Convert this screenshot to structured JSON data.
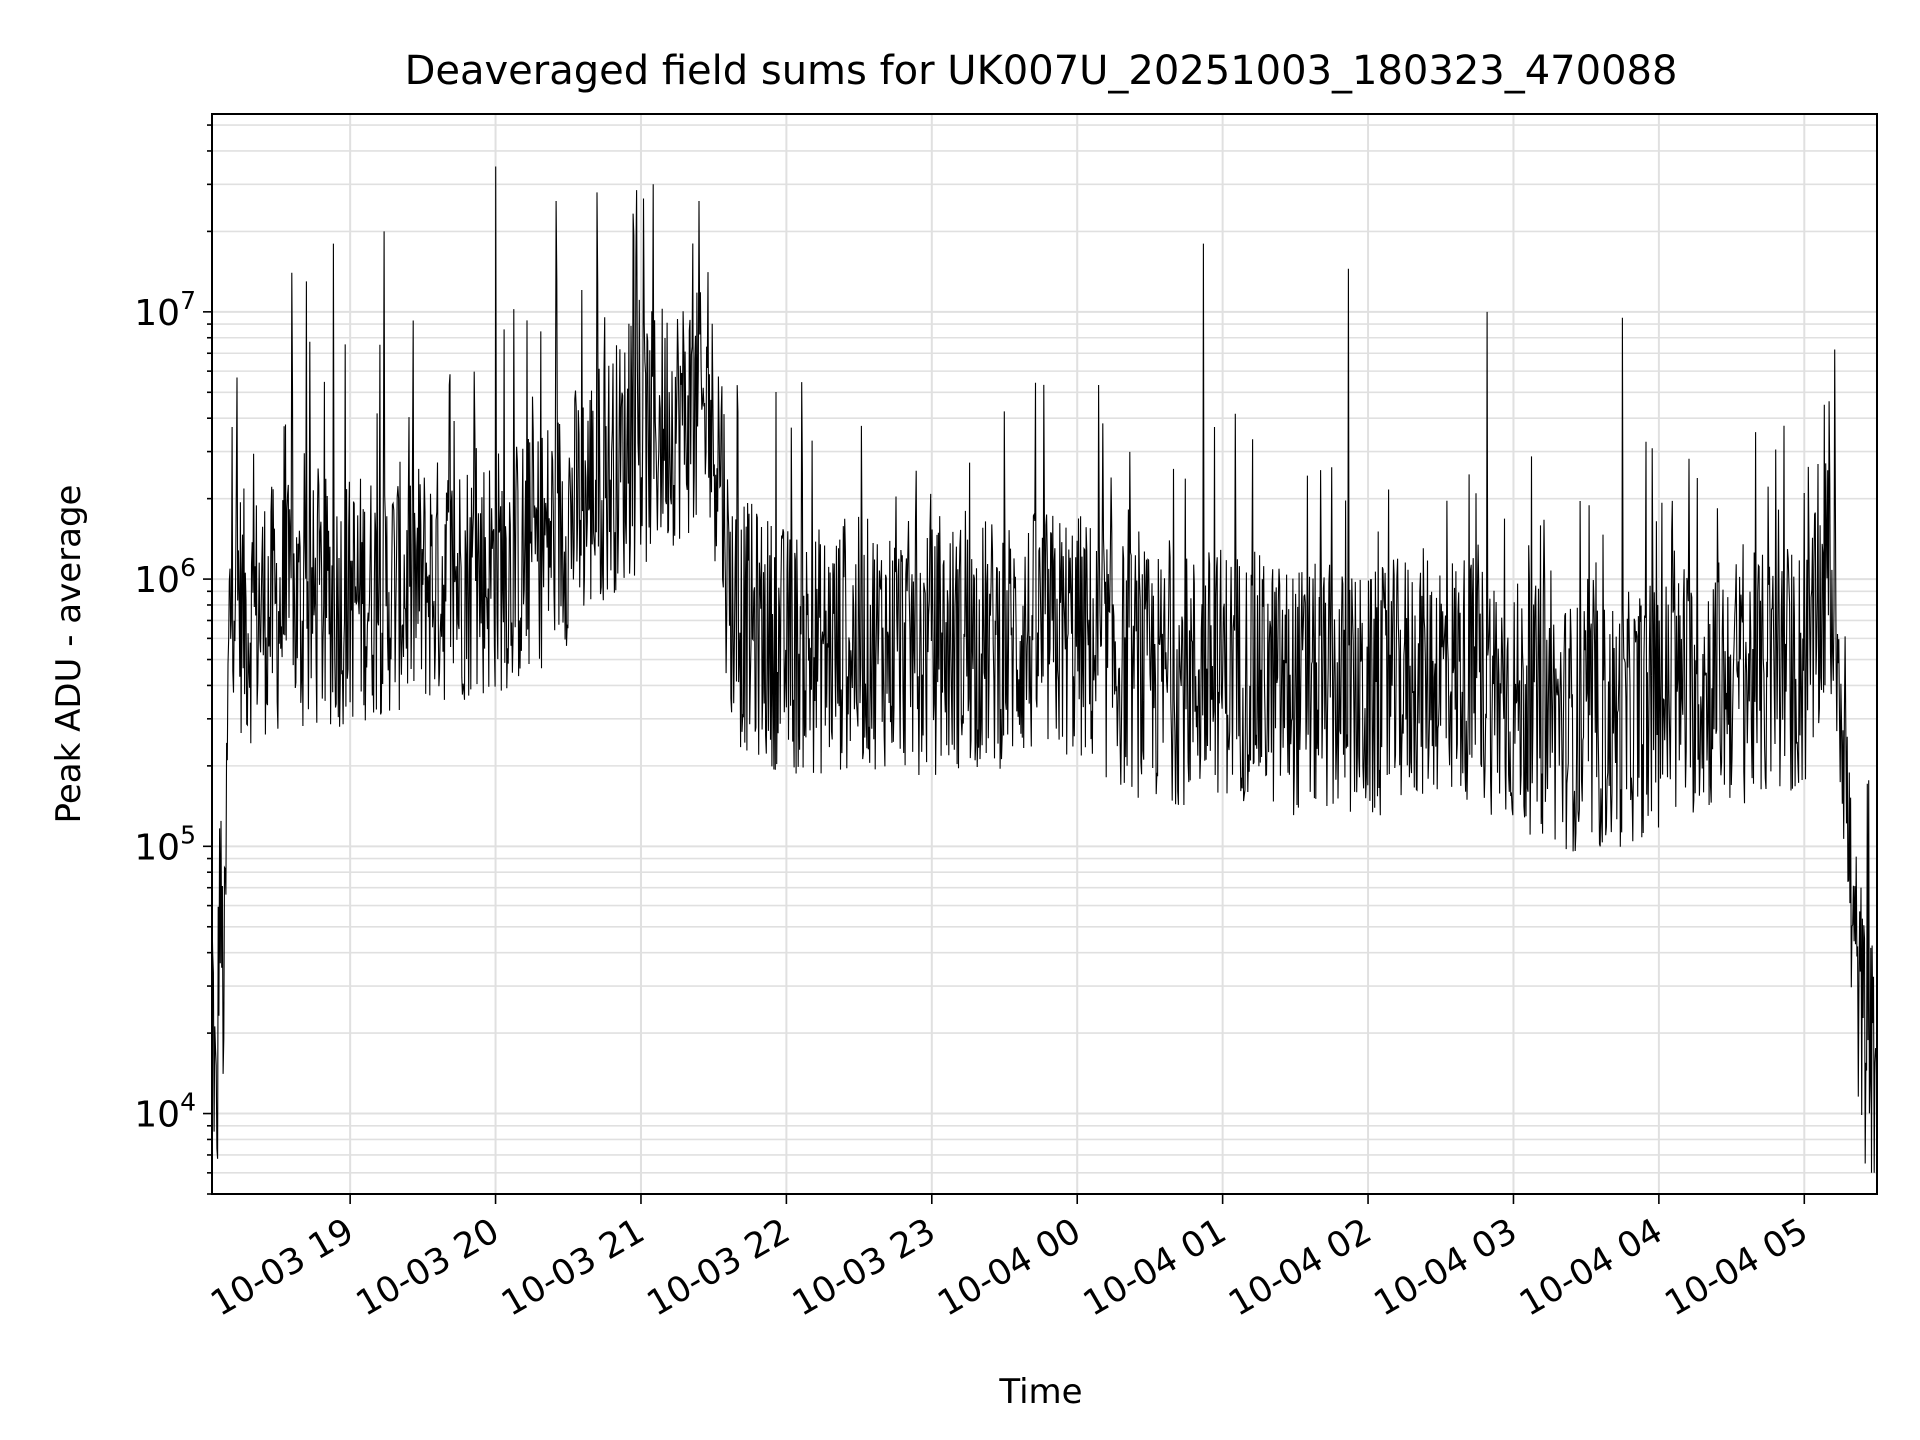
{
  "chart_data": {
    "type": "line",
    "title": "Deaveraged field sums for UK007U_20251003_180323_470088",
    "xlabel": "Time",
    "ylabel": "Peak ADU - average",
    "yscale": "log",
    "ylim": [
      5000,
      55000000
    ],
    "xlim": [
      "2025-10-03 18:03",
      "2025-10-04 05:30"
    ],
    "x_ticks": [
      {
        "label": "10-03 19",
        "time": "2025-10-03 19:00"
      },
      {
        "label": "10-03 20",
        "time": "2025-10-03 20:00"
      },
      {
        "label": "10-03 21",
        "time": "2025-10-03 21:00"
      },
      {
        "label": "10-03 22",
        "time": "2025-10-03 22:00"
      },
      {
        "label": "10-03 23",
        "time": "2025-10-03 23:00"
      },
      {
        "label": "10-04 00",
        "time": "2025-10-04 00:00"
      },
      {
        "label": "10-04 01",
        "time": "2025-10-04 01:00"
      },
      {
        "label": "10-04 02",
        "time": "2025-10-04 02:00"
      },
      {
        "label": "10-04 03",
        "time": "2025-10-04 03:00"
      },
      {
        "label": "10-04 04",
        "time": "2025-10-04 04:00"
      },
      {
        "label": "10-04 05",
        "time": "2025-10-04 05:00"
      }
    ],
    "y_ticks": [
      {
        "base": "10",
        "exp": "4",
        "value": 10000
      },
      {
        "base": "10",
        "exp": "5",
        "value": 100000
      },
      {
        "base": "10",
        "exp": "6",
        "value": 1000000
      },
      {
        "base": "10",
        "exp": "7",
        "value": 10000000
      }
    ],
    "grid": true,
    "line_color": "#000000",
    "grid_color": "#e0e0e0",
    "series": [
      {
        "x": [
          "2025-10-03 18:03",
          "2025-10-03 18:05",
          "2025-10-03 18:06",
          "2025-10-03 18:08",
          "2025-10-03 18:10",
          "2025-10-03 18:12",
          "2025-10-03 18:15",
          "2025-10-03 18:18",
          "2025-10-03 18:22",
          "2025-10-03 18:26",
          "2025-10-03 18:30",
          "2025-10-03 18:35",
          "2025-10-03 18:40",
          "2025-10-03 18:45",
          "2025-10-03 18:50",
          "2025-10-03 18:55",
          "2025-10-03 19:00",
          "2025-10-03 19:10",
          "2025-10-03 19:20",
          "2025-10-03 19:30",
          "2025-10-03 19:40",
          "2025-10-03 19:50",
          "2025-10-03 20:00",
          "2025-10-03 20:10",
          "2025-10-03 20:20",
          "2025-10-03 20:30",
          "2025-10-03 20:40",
          "2025-10-03 20:50",
          "2025-10-03 21:00",
          "2025-10-03 21:10",
          "2025-10-03 21:20",
          "2025-10-03 21:28",
          "2025-10-03 21:33",
          "2025-10-03 21:36",
          "2025-10-03 21:40",
          "2025-10-03 21:50",
          "2025-10-03 22:00",
          "2025-10-03 22:15",
          "2025-10-03 22:30",
          "2025-10-03 22:45",
          "2025-10-03 23:00",
          "2025-10-03 23:15",
          "2025-10-03 23:30",
          "2025-10-03 23:45",
          "2025-10-04 00:00",
          "2025-10-04 00:15",
          "2025-10-04 00:30",
          "2025-10-04 00:45",
          "2025-10-04 01:00",
          "2025-10-04 01:15",
          "2025-10-04 01:30",
          "2025-10-04 01:45",
          "2025-10-04 02:00",
          "2025-10-04 02:15",
          "2025-10-04 02:30",
          "2025-10-04 02:45",
          "2025-10-04 03:00",
          "2025-10-04 03:15",
          "2025-10-04 03:30",
          "2025-10-04 03:45",
          "2025-10-04 04:00",
          "2025-10-04 04:15",
          "2025-10-04 04:30",
          "2025-10-04 04:45",
          "2025-10-04 05:00",
          "2025-10-04 05:05",
          "2025-10-04 05:10",
          "2025-10-04 05:15",
          "2025-10-04 05:20",
          "2025-10-04 05:25",
          "2025-10-04 05:28",
          "2025-10-04 05:30"
        ],
        "values": [
          50000,
          8000,
          100000,
          30000,
          800000,
          1500000,
          1000000,
          900000,
          1000000,
          1000000,
          1000000,
          1000000,
          950000,
          1000000,
          1050000,
          1050000,
          1100000,
          1150000,
          1200000,
          1250000,
          1300000,
          1350000,
          1400000,
          1500000,
          1800000,
          2200000,
          2800000,
          3500000,
          4000000,
          5000000,
          5500000,
          5000000,
          4000000,
          1200000,
          900000,
          800000,
          700000,
          700000,
          750000,
          750000,
          700000,
          750000,
          750000,
          800000,
          800000,
          650000,
          550000,
          550000,
          600000,
          550000,
          500000,
          500000,
          450000,
          550000,
          600000,
          550000,
          450000,
          400000,
          350000,
          380000,
          450000,
          500000,
          550000,
          550000,
          600000,
          800000,
          1500000,
          600000,
          60000,
          25000,
          20000,
          20000
        ],
        "spikes": [
          {
            "time": "2025-10-03 18:36",
            "value": 14000000
          },
          {
            "time": "2025-10-03 18:42",
            "value": 13000000
          },
          {
            "time": "2025-10-03 18:53",
            "value": 18000000
          },
          {
            "time": "2025-10-03 19:14",
            "value": 20000000
          },
          {
            "time": "2025-10-03 20:00",
            "value": 35000000
          },
          {
            "time": "2025-10-03 20:25",
            "value": 26000000
          },
          {
            "time": "2025-10-03 20:42",
            "value": 28000000
          },
          {
            "time": "2025-10-03 21:05",
            "value": 30000000
          },
          {
            "time": "2025-10-03 21:24",
            "value": 26000000
          },
          {
            "time": "2025-10-03 23:14",
            "value": 1800000
          },
          {
            "time": "2025-10-04 00:14",
            "value": 2400000
          },
          {
            "time": "2025-10-04 00:52",
            "value": 18000000
          },
          {
            "time": "2025-10-04 01:52",
            "value": 14500000
          },
          {
            "time": "2025-10-04 02:49",
            "value": 10000000
          },
          {
            "time": "2025-10-04 03:45",
            "value": 9500000
          },
          {
            "time": "2025-10-04 05:00",
            "value": 2100000
          }
        ]
      }
    ]
  }
}
